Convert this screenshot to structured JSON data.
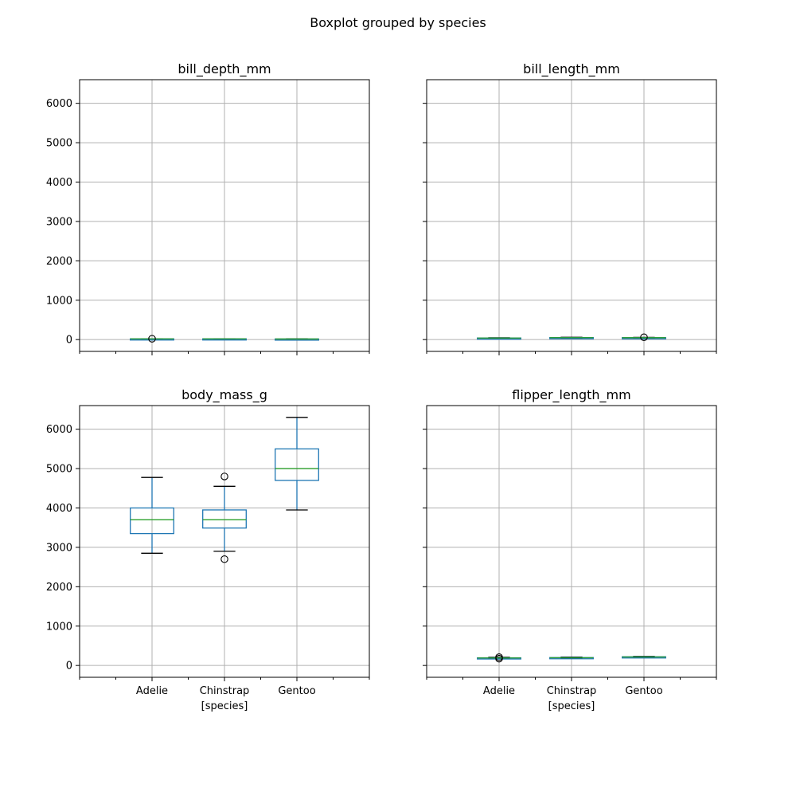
{
  "figure": {
    "title": "Boxplot grouped by species"
  },
  "chart_data": [
    {
      "type": "box",
      "title": "bill_depth_mm",
      "categories": [
        "Adelie",
        "Chinstrap",
        "Gentoo"
      ],
      "xlabel": "",
      "ylabel": "",
      "ylim": [
        -300,
        6600
      ],
      "yticks": [
        0,
        1000,
        2000,
        3000,
        4000,
        5000,
        6000
      ],
      "grid": true,
      "boxes": [
        {
          "whislo": 15.5,
          "q1": 17.5,
          "med": 18.4,
          "q3": 19.0,
          "whishi": 21.2,
          "fliers": [
            21.5
          ]
        },
        {
          "whislo": 16.4,
          "q1": 17.5,
          "med": 18.5,
          "q3": 19.4,
          "whishi": 20.8,
          "fliers": []
        },
        {
          "whislo": 13.1,
          "q1": 14.2,
          "med": 15.0,
          "q3": 15.7,
          "whishi": 17.3,
          "fliers": []
        }
      ]
    },
    {
      "type": "box",
      "title": "bill_length_mm",
      "categories": [
        "Adelie",
        "Chinstrap",
        "Gentoo"
      ],
      "xlabel": "",
      "ylabel": "",
      "ylim": [
        -300,
        6600
      ],
      "yticks": [
        0,
        1000,
        2000,
        3000,
        4000,
        5000,
        6000
      ],
      "grid": true,
      "boxes": [
        {
          "whislo": 32.1,
          "q1": 36.8,
          "med": 38.8,
          "q3": 40.8,
          "whishi": 46.0,
          "fliers": []
        },
        {
          "whislo": 40.9,
          "q1": 46.3,
          "med": 49.5,
          "q3": 51.1,
          "whishi": 58.0,
          "fliers": []
        },
        {
          "whislo": 40.9,
          "q1": 45.3,
          "med": 47.3,
          "q3": 49.6,
          "whishi": 55.9,
          "fliers": [
            59.6
          ]
        }
      ]
    },
    {
      "type": "box",
      "title": "body_mass_g",
      "categories": [
        "Adelie",
        "Chinstrap",
        "Gentoo"
      ],
      "xlabel": "[species]",
      "ylabel": "",
      "ylim": [
        -300,
        6600
      ],
      "yticks": [
        0,
        1000,
        2000,
        3000,
        4000,
        5000,
        6000
      ],
      "grid": true,
      "boxes": [
        {
          "whislo": 2850,
          "q1": 3350,
          "med": 3700,
          "q3": 4000,
          "whishi": 4775,
          "fliers": []
        },
        {
          "whislo": 2900,
          "q1": 3490,
          "med": 3700,
          "q3": 3950,
          "whishi": 4550,
          "fliers": [
            4800,
            2700
          ]
        },
        {
          "whislo": 3950,
          "q1": 4700,
          "med": 5000,
          "q3": 5500,
          "whishi": 6300,
          "fliers": []
        }
      ]
    },
    {
      "type": "box",
      "title": "flipper_length_mm",
      "categories": [
        "Adelie",
        "Chinstrap",
        "Gentoo"
      ],
      "xlabel": "[species]",
      "ylabel": "",
      "ylim": [
        -300,
        6600
      ],
      "yticks": [
        0,
        1000,
        2000,
        3000,
        4000,
        5000,
        6000
      ],
      "grid": true,
      "boxes": [
        {
          "whislo": 172,
          "q1": 186,
          "med": 190,
          "q3": 195,
          "whishi": 208,
          "fliers": [
            210,
            172
          ]
        },
        {
          "whislo": 178,
          "q1": 191,
          "med": 196,
          "q3": 201,
          "whishi": 212,
          "fliers": []
        },
        {
          "whislo": 203,
          "q1": 212,
          "med": 216,
          "q3": 221,
          "whishi": 231,
          "fliers": []
        }
      ]
    }
  ],
  "colors": {
    "box": "#1f77b4",
    "median": "#2ca02c",
    "grid": "#b0b0b0",
    "axes": "#000000"
  }
}
